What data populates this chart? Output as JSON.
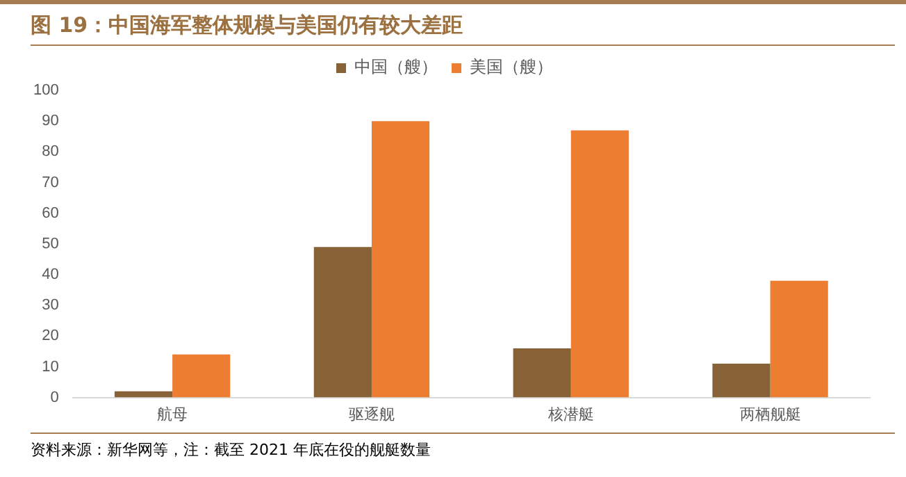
{
  "chart_data": {
    "type": "bar",
    "title": "图 19：中国海军整体规模与美国仍有较大差距",
    "categories": [
      "航母",
      "驱逐舰",
      "核潜艇",
      "两栖舰艇"
    ],
    "series": [
      {
        "name": "中国（艘）",
        "color": "#866236",
        "values": [
          2,
          49,
          16,
          11
        ]
      },
      {
        "name": "美国（艘）",
        "color": "#ed7d31",
        "values": [
          14,
          90,
          87,
          38
        ]
      }
    ],
    "ylim": [
      0,
      100
    ],
    "yticks": [
      0,
      10,
      20,
      30,
      40,
      50,
      60,
      70,
      80,
      90,
      100
    ],
    "grid": false,
    "legend": "top",
    "annotations": [
      "资料来源：新华网等，注：截至 2021 年底在役的舰艇数量"
    ]
  }
}
